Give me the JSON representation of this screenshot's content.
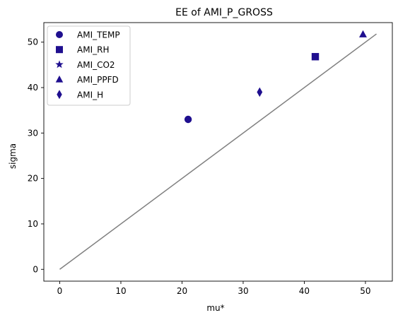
{
  "chart_data": {
    "type": "scatter",
    "title": "EE of AMI_P_GROSS",
    "xlabel": "mu*",
    "ylabel": "sigma",
    "xlim": [
      -2.6,
      54.4
    ],
    "ylim": [
      -2.6,
      54.3
    ],
    "xticks": [
      0,
      10,
      20,
      30,
      40,
      50
    ],
    "yticks": [
      0,
      10,
      20,
      30,
      40,
      50
    ],
    "grid": false,
    "legend_position": "top-left",
    "marker_color": "#1f0f8f",
    "reference_line": {
      "x": [
        0,
        51.8
      ],
      "y": [
        0,
        51.8
      ],
      "color": "#808080"
    },
    "series": [
      {
        "name": "AMI_TEMP",
        "marker": "circle",
        "x": [
          21.0
        ],
        "y": [
          33.0
        ]
      },
      {
        "name": "AMI_RH",
        "marker": "square",
        "x": [
          41.8
        ],
        "y": [
          46.8
        ]
      },
      {
        "name": "AMI_CO2",
        "marker": "star",
        "x": [],
        "y": []
      },
      {
        "name": "AMI_PPFD",
        "marker": "triangle",
        "x": [
          49.6
        ],
        "y": [
          51.7
        ]
      },
      {
        "name": "AMI_H",
        "marker": "diamond",
        "x": [
          32.7
        ],
        "y": [
          39.0
        ]
      }
    ]
  }
}
